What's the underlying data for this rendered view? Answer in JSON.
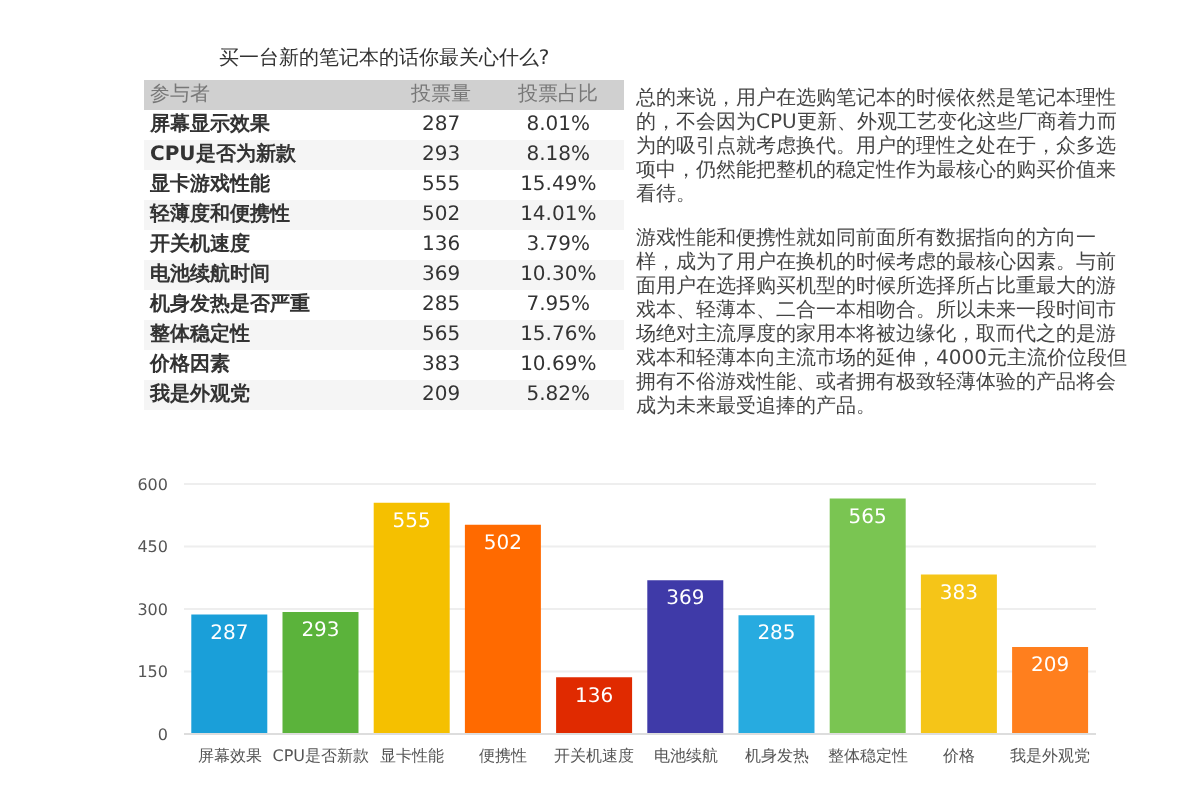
{
  "chart_data": {
    "type": "bar",
    "title": "买一台新的笔记本的话你最关心什么?",
    "categories": [
      "屏幕效果",
      "CPU是否新款",
      "显卡性能",
      "便携性",
      "开关机速度",
      "电池续航",
      "机身发热",
      "整体稳定性",
      "价格",
      "我是外观党"
    ],
    "values": [
      287,
      293,
      555,
      502,
      136,
      369,
      285,
      565,
      383,
      209
    ],
    "colors": [
      "#1a9fd9",
      "#5bb33b",
      "#f5c000",
      "#ff6a00",
      "#e02a00",
      "#3f3aa8",
      "#27abe0",
      "#7ac552",
      "#f5c518",
      "#ff7f1e"
    ],
    "ylim": [
      0,
      600
    ],
    "yticks": [
      0,
      150,
      300,
      450,
      600
    ],
    "grid": "y",
    "data_labels": true,
    "annotations": [
      "参与者",
      "投票量",
      "投票占比",
      "屏幕显示效果",
      "287",
      "8.01%",
      "CPU是否为新款",
      "293",
      "8.18%",
      "显卡游戏性能",
      "555",
      "15.49%",
      "轻薄度和便携性",
      "502",
      "14.01%",
      "开关机速度",
      "136",
      "3.79%",
      "电池续航时间",
      "369",
      "10.30%",
      "机身发热是否严重",
      "285",
      "7.95%",
      "整体稳定性",
      "565",
      "15.76%",
      "价格因素",
      "383",
      "10.69%",
      "我是外观党",
      "209",
      "5.82%",
      "总的来说，用户在选购笔记本的时候依然是笔记本理性的，不会因为CPU更新、外观工艺变化这些厂商着力而为的吸引点就考虑换代。用户的理性之处在于，众多选项中，仍然能把整机的稳定性作为最核心的购买价值来看待。",
      "游戏性能和便携性就如同前面所有数据指向的方向一样，成为了用户在换机的时候考虑的最核心因素。与前面用户在选择购买机型的时候所选择所占比重最大的游戏本、轻薄本、二合一本相吻合。所以未来一段时间市场绝对主流厚度的家用本将被边缘化，取而代之的是游戏本和轻薄本向主流市场的延伸，4000元主流价位段但拥有不俗游戏性能、或者拥有极致轻薄体验的产品将会成为未来最受追捧的产品。"
    ]
  }
}
